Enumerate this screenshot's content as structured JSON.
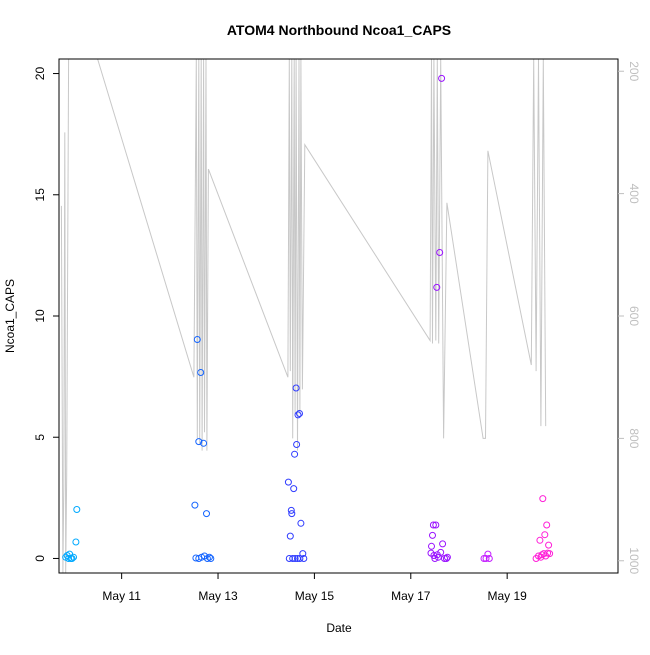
{
  "chart_data": {
    "type": "scatter",
    "title": "ATOM4 Northbound Ncoa1_CAPS",
    "xlabel": "Date",
    "ylabel": "Ncoa1_CAPS",
    "x_unit": "day of May",
    "xlim": [
      9.7,
      21.3
    ],
    "ylim": [
      -0.6,
      20.6
    ],
    "x_ticks": [
      {
        "value": 11,
        "label": "May 11"
      },
      {
        "value": 13,
        "label": "May 13"
      },
      {
        "value": 15,
        "label": "May 15"
      },
      {
        "value": 17,
        "label": "May 17"
      },
      {
        "value": 19,
        "label": "May 19"
      }
    ],
    "y_ticks": [
      0,
      5,
      10,
      15,
      20
    ],
    "y2_label": "",
    "y2_range": [
      1020,
      180
    ],
    "y2_ticks": [
      200,
      400,
      600,
      800,
      1000
    ],
    "colors": {
      "axis": "#000000",
      "secondary": "#bfbfbf",
      "depth_line": "#c8c8c8"
    },
    "points": [
      {
        "x": 9.84,
        "y": 0.05,
        "color": "#00a9ff"
      },
      {
        "x": 9.87,
        "y": 0.12,
        "color": "#00a9ff"
      },
      {
        "x": 9.9,
        "y": 0.0,
        "color": "#00a9ff"
      },
      {
        "x": 9.92,
        "y": 0.18,
        "color": "#00a9ff"
      },
      {
        "x": 9.95,
        "y": 0.0,
        "color": "#00a9ff"
      },
      {
        "x": 9.97,
        "y": 0.0,
        "color": "#00a9ff"
      },
      {
        "x": 10.0,
        "y": 0.05,
        "color": "#00a9ff"
      },
      {
        "x": 10.05,
        "y": 0.68,
        "color": "#00a9ff"
      },
      {
        "x": 10.07,
        "y": 2.02,
        "color": "#00a9ff"
      },
      {
        "x": 12.52,
        "y": 2.2,
        "color": "#1565ff"
      },
      {
        "x": 12.54,
        "y": 0.02,
        "color": "#1565ff"
      },
      {
        "x": 12.57,
        "y": 9.03,
        "color": "#1565ff"
      },
      {
        "x": 12.6,
        "y": 4.82,
        "color": "#1565ff"
      },
      {
        "x": 12.6,
        "y": 0.0,
        "color": "#1565ff"
      },
      {
        "x": 12.64,
        "y": 7.67,
        "color": "#1565ff"
      },
      {
        "x": 12.66,
        "y": 0.05,
        "color": "#1565ff"
      },
      {
        "x": 12.7,
        "y": 4.75,
        "color": "#1565ff"
      },
      {
        "x": 12.72,
        "y": 0.1,
        "color": "#1565ff"
      },
      {
        "x": 12.76,
        "y": 1.85,
        "color": "#1565ff"
      },
      {
        "x": 12.78,
        "y": 0.0,
        "color": "#1565ff"
      },
      {
        "x": 12.82,
        "y": 0.05,
        "color": "#1565ff"
      },
      {
        "x": 12.85,
        "y": 0.0,
        "color": "#1565ff"
      },
      {
        "x": 14.46,
        "y": 3.15,
        "color": "#2f3cff"
      },
      {
        "x": 14.48,
        "y": 0.0,
        "color": "#2f3cff"
      },
      {
        "x": 14.5,
        "y": 0.92,
        "color": "#2f3cff"
      },
      {
        "x": 14.52,
        "y": 1.98,
        "color": "#2f3cff"
      },
      {
        "x": 14.53,
        "y": 1.85,
        "color": "#2f3cff"
      },
      {
        "x": 14.55,
        "y": 0.0,
        "color": "#2f3cff"
      },
      {
        "x": 14.57,
        "y": 2.88,
        "color": "#2f3cff"
      },
      {
        "x": 14.59,
        "y": 4.3,
        "color": "#2f3cff"
      },
      {
        "x": 14.6,
        "y": 0.0,
        "color": "#2f3cff"
      },
      {
        "x": 14.62,
        "y": 7.03,
        "color": "#2f3cff"
      },
      {
        "x": 14.63,
        "y": 4.7,
        "color": "#2f3cff"
      },
      {
        "x": 14.65,
        "y": 0.0,
        "color": "#2f3cff"
      },
      {
        "x": 14.66,
        "y": 5.92,
        "color": "#2f3cff"
      },
      {
        "x": 14.69,
        "y": 5.98,
        "color": "#2f3cff"
      },
      {
        "x": 14.7,
        "y": 0.0,
        "color": "#2f3cff"
      },
      {
        "x": 14.72,
        "y": 1.45,
        "color": "#2f3cff"
      },
      {
        "x": 14.76,
        "y": 0.2,
        "color": "#2f3cff"
      },
      {
        "x": 14.78,
        "y": 0.0,
        "color": "#2f3cff"
      },
      {
        "x": 17.42,
        "y": 0.22,
        "color": "#9a13ff"
      },
      {
        "x": 17.43,
        "y": 0.5,
        "color": "#9a13ff"
      },
      {
        "x": 17.45,
        "y": 0.95,
        "color": "#9a13ff"
      },
      {
        "x": 17.47,
        "y": 1.38,
        "color": "#9a13ff"
      },
      {
        "x": 17.48,
        "y": 0.12,
        "color": "#9a13ff"
      },
      {
        "x": 17.5,
        "y": 0.0,
        "color": "#9a13ff"
      },
      {
        "x": 17.52,
        "y": 1.38,
        "color": "#9a13ff"
      },
      {
        "x": 17.54,
        "y": 11.18,
        "color": "#9a13ff"
      },
      {
        "x": 17.55,
        "y": 0.15,
        "color": "#9a13ff"
      },
      {
        "x": 17.57,
        "y": 0.05,
        "color": "#9a13ff"
      },
      {
        "x": 17.6,
        "y": 12.62,
        "color": "#9a13ff"
      },
      {
        "x": 17.62,
        "y": 0.25,
        "color": "#9a13ff"
      },
      {
        "x": 17.64,
        "y": 19.8,
        "color": "#9a13ff"
      },
      {
        "x": 17.66,
        "y": 0.6,
        "color": "#9a13ff"
      },
      {
        "x": 17.7,
        "y": 0.0,
        "color": "#9a13ff"
      },
      {
        "x": 17.74,
        "y": 0.0,
        "color": "#9a13ff"
      },
      {
        "x": 17.76,
        "y": 0.05,
        "color": "#9a13ff"
      },
      {
        "x": 18.52,
        "y": 0.0,
        "color": "#c41fff"
      },
      {
        "x": 18.56,
        "y": 0.0,
        "color": "#c41fff"
      },
      {
        "x": 18.6,
        "y": 0.18,
        "color": "#c41fff"
      },
      {
        "x": 18.63,
        "y": 0.0,
        "color": "#c41fff"
      },
      {
        "x": 19.6,
        "y": 0.0,
        "color": "#ff1fd8"
      },
      {
        "x": 19.65,
        "y": 0.1,
        "color": "#ff1fd8"
      },
      {
        "x": 19.68,
        "y": 0.75,
        "color": "#ff1fd8"
      },
      {
        "x": 19.7,
        "y": 0.05,
        "color": "#ff1fd8"
      },
      {
        "x": 19.72,
        "y": 0.15,
        "color": "#ff1fd8"
      },
      {
        "x": 19.74,
        "y": 2.47,
        "color": "#ff1fd8"
      },
      {
        "x": 19.76,
        "y": 0.2,
        "color": "#ff1fd8"
      },
      {
        "x": 19.78,
        "y": 0.98,
        "color": "#ff1fd8"
      },
      {
        "x": 19.8,
        "y": 0.1,
        "color": "#ff1fd8"
      },
      {
        "x": 19.82,
        "y": 1.38,
        "color": "#ff1fd8"
      },
      {
        "x": 19.84,
        "y": 0.22,
        "color": "#ff1fd8"
      },
      {
        "x": 19.86,
        "y": 0.55,
        "color": "#ff1fd8"
      },
      {
        "x": 19.88,
        "y": 0.2,
        "color": "#ff1fd8"
      }
    ],
    "depth_line": [
      [
        9.75,
        420
      ],
      [
        9.78,
        1020
      ],
      [
        9.8,
        880
      ],
      [
        9.82,
        300
      ],
      [
        9.84,
        1020
      ],
      [
        9.86,
        860
      ],
      [
        9.9,
        180
      ],
      [
        10.05,
        180
      ],
      [
        10.5,
        180
      ],
      [
        12.5,
        700
      ],
      [
        12.55,
        180
      ],
      [
        12.57,
        800
      ],
      [
        12.6,
        180
      ],
      [
        12.62,
        810
      ],
      [
        12.65,
        180
      ],
      [
        12.67,
        820
      ],
      [
        12.7,
        180
      ],
      [
        12.72,
        790
      ],
      [
        12.75,
        180
      ],
      [
        12.77,
        820
      ],
      [
        12.8,
        360
      ],
      [
        14.45,
        700
      ],
      [
        14.48,
        180
      ],
      [
        14.5,
        690
      ],
      [
        14.53,
        180
      ],
      [
        14.55,
        800
      ],
      [
        14.58,
        180
      ],
      [
        14.6,
        760
      ],
      [
        14.62,
        180
      ],
      [
        14.65,
        820
      ],
      [
        14.68,
        180
      ],
      [
        14.7,
        760
      ],
      [
        14.72,
        180
      ],
      [
        14.75,
        720
      ],
      [
        14.8,
        320
      ],
      [
        17.4,
        640
      ],
      [
        17.43,
        180
      ],
      [
        17.45,
        645
      ],
      [
        17.48,
        180
      ],
      [
        17.52,
        640
      ],
      [
        17.55,
        180
      ],
      [
        17.58,
        645
      ],
      [
        17.62,
        180
      ],
      [
        17.68,
        800
      ],
      [
        17.75,
        415
      ],
      [
        18.5,
        800
      ],
      [
        18.55,
        800
      ],
      [
        18.6,
        330
      ],
      [
        19.5,
        680
      ],
      [
        19.55,
        180
      ],
      [
        19.6,
        690
      ],
      [
        19.65,
        180
      ],
      [
        19.7,
        780
      ],
      [
        19.75,
        180
      ],
      [
        19.8,
        780
      ]
    ]
  }
}
